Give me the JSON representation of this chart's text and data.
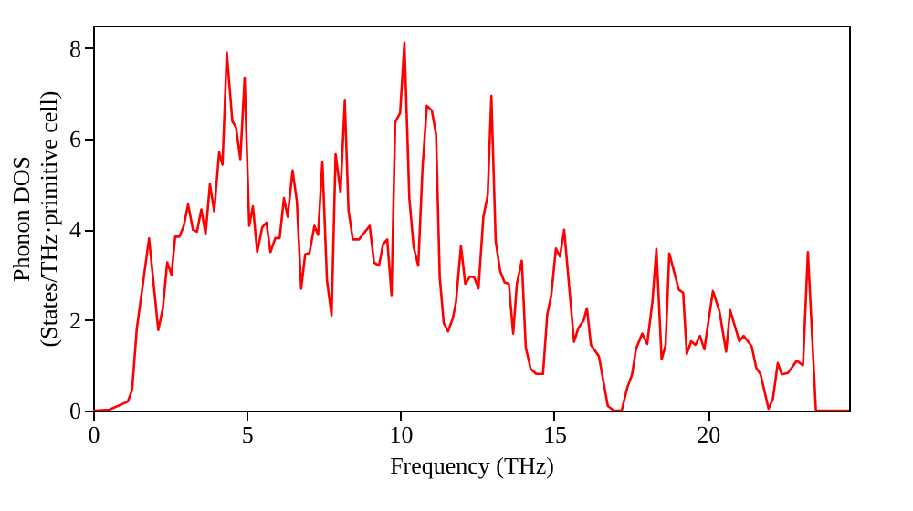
{
  "chart_data": {
    "type": "line",
    "xlabel": "Frequency (THz)",
    "ylabel": "Phonon DOS\n(States/THz·primitive cell)",
    "xlim": [
      0,
      24.6
    ],
    "ylim": [
      0,
      8.5
    ],
    "xticks": [
      0,
      5,
      10,
      15,
      20
    ],
    "yticks": [
      0,
      2,
      4,
      6,
      8
    ],
    "grid": false,
    "marker": "none",
    "line_style": "solid",
    "x": [
      0,
      0.53,
      1.13,
      1.27,
      1.42,
      1.82,
      2.12,
      2.27,
      2.41,
      2.55,
      2.67,
      2.81,
      2.95,
      3.09,
      3.25,
      3.38,
      3.52,
      3.66,
      3.8,
      3.94,
      4.1,
      4.21,
      4.35,
      4.53,
      4.65,
      4.79,
      4.93,
      5.08,
      5.2,
      5.34,
      5.5,
      5.64,
      5.77,
      5.93,
      6.07,
      6.21,
      6.33,
      6.49,
      6.63,
      6.77,
      6.9,
      7.04,
      7.2,
      7.32,
      7.46,
      7.61,
      7.76,
      7.89,
      8.05,
      8.19,
      8.31,
      8.45,
      8.65,
      9.0,
      9.14,
      9.3,
      9.44,
      9.57,
      9.71,
      9.83,
      9.99,
      10.13,
      10.29,
      10.43,
      10.58,
      10.72,
      10.86,
      11.02,
      11.16,
      11.28,
      11.41,
      11.55,
      11.71,
      11.81,
      11.97,
      12.11,
      12.27,
      12.4,
      12.54,
      12.7,
      12.84,
      12.96,
      13.1,
      13.25,
      13.39,
      13.53,
      13.67,
      13.79,
      13.95,
      14.08,
      14.24,
      14.42,
      14.64,
      14.78,
      14.91,
      15.06,
      15.19,
      15.33,
      15.51,
      15.65,
      15.79,
      15.96,
      16.07,
      16.2,
      16.46,
      16.75,
      16.95,
      17.2,
      17.38,
      17.54,
      17.67,
      17.87,
      18.03,
      18.2,
      18.33,
      18.5,
      18.63,
      18.75,
      19.06,
      19.2,
      19.32,
      19.46,
      19.6,
      19.75,
      19.89,
      20.17,
      20.38,
      20.6,
      20.73,
      21.03,
      21.17,
      21.43,
      21.58,
      21.72,
      21.98,
      22.12,
      22.28,
      22.41,
      22.61,
      22.9,
      23.1,
      23.26,
      23.52,
      24.6
    ],
    "series": [
      {
        "color": "#ff0000",
        "values": [
          0,
          0.02,
          0.2,
          0.46,
          1.8,
          3.8,
          1.78,
          2.26,
          3.27,
          3.0,
          3.84,
          3.84,
          4.08,
          4.55,
          3.99,
          3.95,
          4.44,
          3.9,
          5.0,
          4.4,
          5.7,
          5.43,
          7.9,
          6.39,
          6.25,
          5.55,
          7.35,
          4.08,
          4.51,
          3.5,
          4.04,
          4.15,
          3.5,
          3.81,
          3.81,
          4.69,
          4.28,
          5.3,
          4.62,
          2.69,
          3.45,
          3.48,
          4.08,
          3.88,
          5.5,
          2.87,
          2.1,
          5.66,
          4.82,
          6.84,
          4.42,
          3.78,
          3.78,
          4.08,
          3.27,
          3.2,
          3.68,
          3.78,
          2.55,
          6.37,
          6.57,
          8.12,
          4.69,
          3.61,
          3.2,
          5.36,
          6.73,
          6.63,
          6.1,
          2.94,
          1.93,
          1.75,
          2.05,
          2.4,
          3.64,
          2.8,
          2.96,
          2.94,
          2.7,
          4.28,
          4.75,
          6.95,
          3.74,
          3.07,
          2.83,
          2.8,
          1.7,
          2.8,
          3.31,
          1.39,
          0.92,
          0.81,
          0.81,
          2.13,
          2.55,
          3.58,
          3.4,
          3.99,
          2.6,
          1.52,
          1.82,
          1.99,
          2.26,
          1.45,
          1.2,
          0.1,
          0,
          0,
          0.5,
          0.8,
          1.37,
          1.7,
          1.47,
          2.4,
          3.57,
          1.13,
          1.45,
          3.47,
          2.67,
          2.6,
          1.25,
          1.53,
          1.45,
          1.65,
          1.35,
          2.64,
          2.2,
          1.3,
          2.22,
          1.53,
          1.65,
          1.42,
          0.94,
          0.8,
          0.04,
          0.25,
          1.05,
          0.8,
          0.83,
          1.1,
          1.0,
          3.5,
          0,
          0
        ]
      }
    ]
  }
}
